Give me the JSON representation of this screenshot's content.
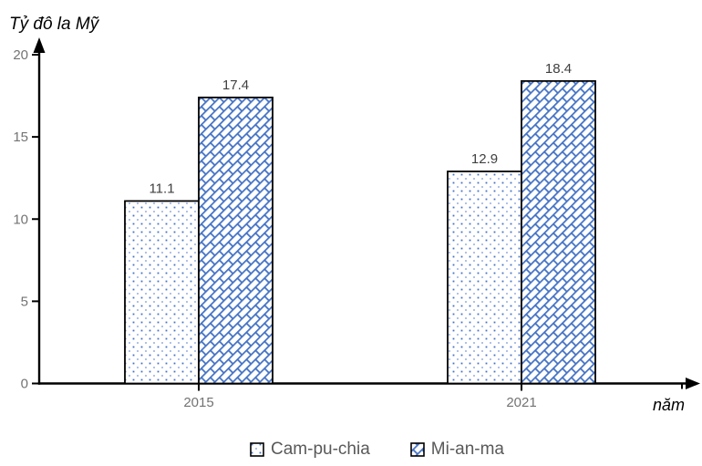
{
  "chart_data": {
    "type": "bar",
    "ylabel": "Tỷ đô la Mỹ",
    "xlabel": "năm",
    "categories": [
      "2015",
      "2021"
    ],
    "series": [
      {
        "name": "Cam-pu-chia",
        "values": [
          11.1,
          12.9
        ],
        "pattern": "dots"
      },
      {
        "name": "Mi-an-ma",
        "values": [
          17.4,
          18.4
        ],
        "pattern": "diagonal-weave"
      }
    ],
    "value_labels": [
      "11.1",
      "17.4",
      "12.9",
      "18.4"
    ],
    "ylim": [
      0,
      20
    ],
    "yticks": [
      0,
      5,
      10,
      15,
      20
    ],
    "grid": false,
    "legend_position": "bottom",
    "data_labels": true
  },
  "colors": {
    "pattern_blue": "#4472C4",
    "pattern_blue_light": "#9db5e3",
    "axis": "#000000",
    "tick_label": "#737373",
    "data_label": "#404040",
    "legend_text": "#595959",
    "background": "#ffffff"
  }
}
